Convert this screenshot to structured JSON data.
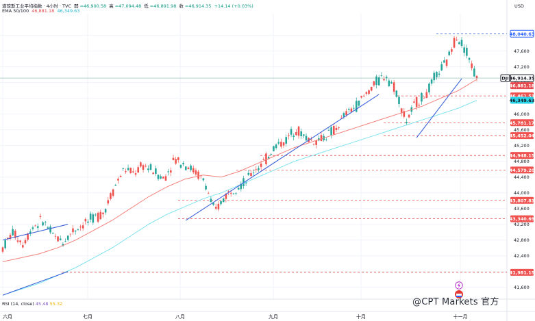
{
  "header": {
    "title": "道琼斯工业平均指数 · 4小时 · TVC",
    "open_label": "開",
    "open": "=46,900.58",
    "high_label": "高",
    "high": "=47,094.48",
    "low_label": "低",
    "low": "=46,891.98",
    "close_label": "收",
    "close": "=46,914.35",
    "change": "+14.14 (+0.03%)",
    "ema_label": "EMA 50/100",
    "ema50": "46,881.18",
    "ema100": "46,349.63"
  },
  "rsi": {
    "label": "RSI (14, close)",
    "value1": "45.48",
    "value2": "55.32"
  },
  "watermark": "@CPT Markets 官方",
  "colors": {
    "up": "#26a69a",
    "down": "#ef5350",
    "ema50": "#f3807a",
    "ema100": "#7fe3ef",
    "trend": "#3b62d9",
    "level": "#e5484d",
    "price_line": "#2e8b7a"
  },
  "chart_data": {
    "type": "line",
    "title": "道琼斯工业平均指数 · 4小时 · TVC",
    "ylabel": "USD",
    "ylim": [
      41300,
      48550
    ],
    "x_ticks": [
      "六月",
      "七月",
      "八月",
      "九月",
      "十月",
      "十一月"
    ],
    "y_ticks": [
      41600,
      42000,
      42400,
      42800,
      43200,
      43600,
      44000,
      44400,
      44800,
      45200,
      45600,
      46000,
      46400,
      46800,
      47200,
      47600,
      48000
    ],
    "candles": {
      "count": 190,
      "x_range": [
        0,
        189
      ],
      "open_sample": [
        42600,
        43000,
        42700,
        43150,
        43300,
        42900,
        42750,
        43050,
        43200,
        43350,
        43500,
        44100,
        44600,
        44500,
        44700,
        44550,
        44350,
        44850,
        44750,
        44550,
        44300,
        43500,
        43900,
        44150,
        44250,
        44600,
        44800,
        45200,
        45300,
        45650,
        45400,
        45300,
        45450,
        45600,
        46000,
        46200,
        46500,
        46800,
        47000,
        46600,
        45800,
        46300,
        46500,
        47000,
        47300,
        48000,
        47600,
        46900
      ],
      "close_final": 46914.35
    },
    "series": [
      {
        "name": "EMA 50",
        "last": 46881.18,
        "values": [
          42250,
          42350,
          42450,
          42600,
          42800,
          43050,
          43300,
          43600,
          43900,
          44150,
          44350,
          44450,
          44400,
          44550,
          44750,
          44950,
          45150,
          45300,
          45450,
          45600,
          45750,
          45900,
          46050,
          46200,
          46400,
          46600,
          46881.18
        ]
      },
      {
        "name": "EMA 100",
        "last": 46349.63,
        "values": [
          41400,
          41550,
          41700,
          41900,
          42100,
          42350,
          42600,
          42900,
          43200,
          43450,
          43650,
          43850,
          44000,
          44200,
          44400,
          44600,
          44800,
          44950,
          45100,
          45250,
          45400,
          45550,
          45700,
          45850,
          46000,
          46150,
          46349.63
        ]
      }
    ],
    "trendlines": [
      {
        "x": [
          0,
          26
        ],
        "y": [
          42800,
          43200
        ]
      },
      {
        "x": [
          0,
          26
        ],
        "y": [
          41400,
          42000
        ]
      },
      {
        "x": [
          73,
          150
        ],
        "y": [
          43300,
          46500
        ]
      },
      {
        "x": [
          165,
          183
        ],
        "y": [
          45400,
          46900
        ]
      }
    ],
    "levels": [
      48040.63,
      46461.51,
      45781.17,
      45452.04,
      44948.15,
      44579.2,
      43807.83,
      43340.69,
      41981.15
    ],
    "price_labels": [
      {
        "text": "48,040.63",
        "value": 48040.63,
        "style": "level-blue"
      },
      {
        "text": "DJI",
        "value": 46914.35,
        "style": "tag"
      },
      {
        "text": "46,914.35",
        "value": 46914.35,
        "style": "price"
      },
      {
        "text": "46,881.18",
        "value": 46881.18,
        "style": "ema50"
      },
      {
        "text": "46,461.51",
        "value": 46461.51,
        "style": "level"
      },
      {
        "text": "46,349.63",
        "value": 46349.63,
        "style": "ema100"
      },
      {
        "text": "45,781.17",
        "value": 45781.17,
        "style": "level"
      },
      {
        "text": "45,452.04",
        "value": 45452.04,
        "style": "level"
      },
      {
        "text": "44,948.15",
        "value": 44948.15,
        "style": "level"
      },
      {
        "text": "44,579.20",
        "value": 44579.2,
        "style": "level"
      },
      {
        "text": "43,807.83",
        "value": 43807.83,
        "style": "level"
      },
      {
        "text": "43,340.69",
        "value": 43340.69,
        "style": "level"
      },
      {
        "text": "41,981.15",
        "value": 41981.15,
        "style": "level"
      }
    ]
  }
}
